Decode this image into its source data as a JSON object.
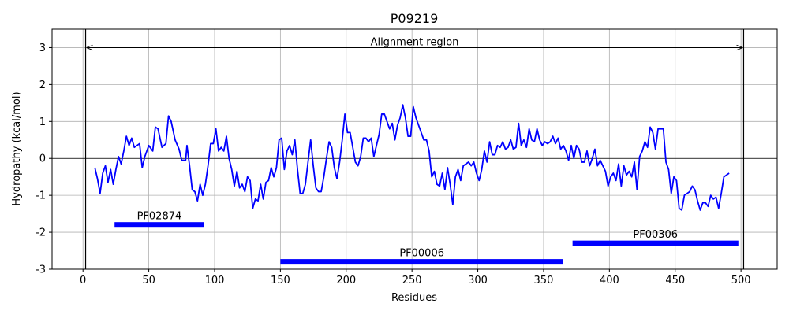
{
  "chart_data": {
    "type": "line",
    "title": "P09219",
    "xlabel": "Residues",
    "ylabel": "Hydropathy (kcal/mol)",
    "color": "#0000ff",
    "grid": true,
    "hline": 0,
    "xlim": [
      -23.5,
      527.5
    ],
    "ylim": [
      -3,
      3.5
    ],
    "xticks": [
      0,
      50,
      100,
      150,
      200,
      250,
      300,
      350,
      400,
      450,
      500
    ],
    "yticks": [
      -3,
      -2,
      -1,
      0,
      1,
      2,
      3
    ],
    "alignment": {
      "label": "Alignment region",
      "start": 2,
      "end": 502,
      "y": 3
    },
    "domains": [
      {
        "name": "PF02874",
        "start": 24,
        "end": 92,
        "y": -1.8,
        "color": "#0000ff"
      },
      {
        "name": "PF00006",
        "start": 150,
        "end": 365,
        "y": -2.8,
        "color": "#0000ff"
      },
      {
        "name": "PF00306",
        "start": 372,
        "end": 498,
        "y": -2.3,
        "color": "#0000ff"
      }
    ],
    "x": [
      9,
      11,
      13,
      15,
      17,
      19,
      21,
      23,
      25,
      27,
      29,
      31,
      33,
      35,
      37,
      39,
      41,
      43,
      45,
      47,
      50,
      53,
      55,
      57,
      60,
      63,
      65,
      67,
      70,
      73,
      75,
      78,
      79,
      81,
      83,
      85,
      87,
      89,
      91,
      93,
      95,
      97,
      99,
      101,
      103,
      105,
      107,
      109,
      111,
      113,
      115,
      117,
      119,
      121,
      123,
      125,
      127,
      129,
      131,
      133,
      135,
      137,
      139,
      141,
      143,
      145,
      147,
      149,
      151,
      153,
      155,
      157,
      159,
      161,
      163,
      165,
      167,
      169,
      171,
      173,
      175,
      177,
      179,
      181,
      183,
      185,
      187,
      189,
      191,
      193,
      195,
      197,
      199,
      201,
      203,
      205,
      207,
      209,
      211,
      213,
      215,
      217,
      219,
      221,
      223,
      225,
      227,
      229,
      231,
      233,
      235,
      237,
      239,
      241,
      243,
      245,
      247,
      249,
      251,
      253,
      255,
      257,
      259,
      261,
      263,
      265,
      267,
      269,
      271,
      273,
      275,
      277,
      279,
      281,
      283,
      285,
      287,
      289,
      291,
      293,
      295,
      297,
      299,
      301,
      303,
      305,
      307,
      309,
      311,
      313,
      315,
      317,
      319,
      321,
      323,
      325,
      327,
      329,
      331,
      333,
      335,
      337,
      339,
      341,
      343,
      345,
      347,
      349,
      351,
      353,
      355,
      357,
      359,
      361,
      363,
      365,
      367,
      369,
      371,
      373,
      375,
      377,
      379,
      381,
      383,
      385,
      387,
      389,
      391,
      393,
      395,
      397,
      399,
      401,
      403,
      405,
      407,
      409,
      411,
      413,
      415,
      417,
      419,
      421,
      423,
      425,
      427,
      429,
      431,
      433,
      435,
      437,
      439,
      441,
      443,
      445,
      447,
      449,
      451,
      453,
      455,
      457,
      459,
      461,
      463,
      465,
      467,
      469,
      471,
      473,
      475,
      477,
      479,
      481,
      483,
      485,
      487,
      489,
      491
    ],
    "values": [
      -0.25,
      -0.55,
      -0.95,
      -0.4,
      -0.2,
      -0.65,
      -0.3,
      -0.7,
      -0.3,
      0.05,
      -0.15,
      0.2,
      0.6,
      0.35,
      0.55,
      0.3,
      0.35,
      0.4,
      -0.25,
      0.05,
      0.35,
      0.2,
      0.85,
      0.8,
      0.3,
      0.4,
      1.15,
      1.0,
      0.5,
      0.25,
      -0.05,
      -0.05,
      0.35,
      -0.2,
      -0.85,
      -0.9,
      -1.15,
      -0.7,
      -1.0,
      -0.7,
      -0.2,
      0.4,
      0.4,
      0.8,
      0.2,
      0.3,
      0.2,
      0.6,
      0.0,
      -0.3,
      -0.75,
      -0.35,
      -0.8,
      -0.7,
      -0.9,
      -0.5,
      -0.6,
      -1.35,
      -1.1,
      -1.15,
      -0.7,
      -1.1,
      -0.65,
      -0.6,
      -0.25,
      -0.5,
      -0.25,
      0.5,
      0.55,
      -0.3,
      0.2,
      0.35,
      0.1,
      0.5,
      -0.3,
      -0.95,
      -0.95,
      -0.7,
      -0.1,
      0.5,
      -0.2,
      -0.8,
      -0.9,
      -0.9,
      -0.5,
      0.0,
      0.45,
      0.3,
      -0.25,
      -0.55,
      -0.1,
      0.5,
      1.2,
      0.7,
      0.7,
      0.3,
      -0.1,
      -0.2,
      0.05,
      0.55,
      0.55,
      0.45,
      0.55,
      0.05,
      0.35,
      0.65,
      1.2,
      1.2,
      1.0,
      0.8,
      0.95,
      0.5,
      0.9,
      1.1,
      1.45,
      1.1,
      0.6,
      0.6,
      1.4,
      1.1,
      0.9,
      0.7,
      0.5,
      0.5,
      0.2,
      -0.5,
      -0.35,
      -0.7,
      -0.75,
      -0.4,
      -0.85,
      -0.25,
      -0.7,
      -1.25,
      -0.5,
      -0.3,
      -0.6,
      -0.2,
      -0.15,
      -0.1,
      -0.2,
      -0.1,
      -0.4,
      -0.6,
      -0.3,
      0.2,
      -0.1,
      0.45,
      0.1,
      0.1,
      0.35,
      0.3,
      0.45,
      0.25,
      0.3,
      0.5,
      0.25,
      0.3,
      0.95,
      0.35,
      0.5,
      0.3,
      0.8,
      0.5,
      0.45,
      0.8,
      0.5,
      0.35,
      0.45,
      0.4,
      0.45,
      0.6,
      0.4,
      0.55,
      0.25,
      0.35,
      0.2,
      -0.05,
      0.35,
      0.0,
      0.35,
      0.25,
      -0.1,
      -0.1,
      0.2,
      -0.2,
      0.0,
      0.25,
      -0.2,
      -0.05,
      -0.2,
      -0.35,
      -0.75,
      -0.5,
      -0.4,
      -0.6,
      -0.15,
      -0.75,
      -0.2,
      -0.45,
      -0.35,
      -0.5,
      -0.1,
      -0.85,
      0.05,
      0.2,
      0.45,
      0.3,
      0.85,
      0.7,
      0.25,
      0.8,
      0.8,
      0.8,
      -0.1,
      -0.3,
      -0.95,
      -0.5,
      -0.6,
      -1.35,
      -1.4,
      -1.0,
      -0.95,
      -0.9,
      -0.75,
      -0.85,
      -1.15,
      -1.4,
      -1.2,
      -1.2,
      -1.3,
      -1.0,
      -1.1,
      -1.05,
      -1.35,
      -0.95,
      -0.5,
      -0.45,
      -0.4
    ]
  }
}
